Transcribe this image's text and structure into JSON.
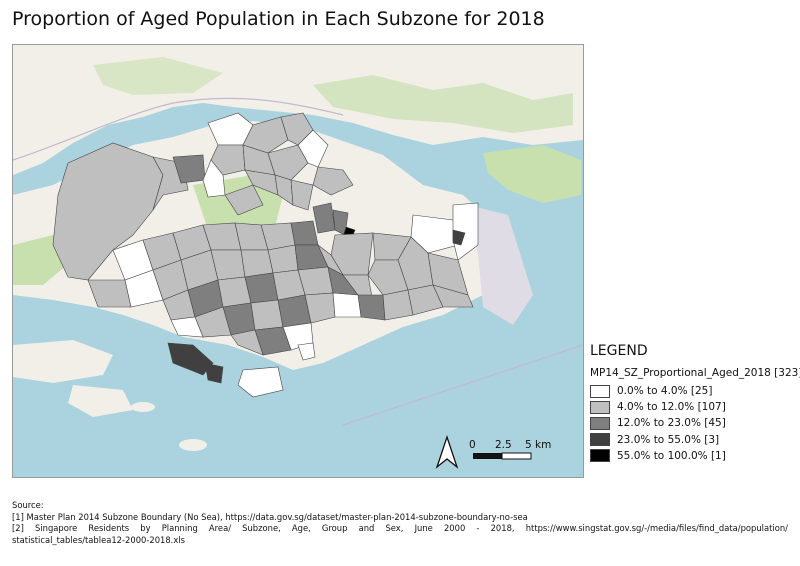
{
  "title": "Proportion of Aged Population in Each Subzone for 2018",
  "legend": {
    "heading": "LEGEND",
    "layer": "MP14_SZ_Proportional_Aged_2018 [323]",
    "classes": [
      {
        "label": "0.0% to 4.0% [25]",
        "color": "#ffffff"
      },
      {
        "label": "4.0% to 12.0% [107]",
        "color": "#bfbfbf"
      },
      {
        "label": "12.0% to 23.0% [45]",
        "color": "#7f7f7f"
      },
      {
        "label": "23.0% to 55.0% [3]",
        "color": "#404040"
      },
      {
        "label": "55.0% to 100.0% [1]",
        "color": "#000000"
      }
    ]
  },
  "scalebar": {
    "t0": "0",
    "t1": "2.5",
    "t2": "5 km"
  },
  "source": {
    "heading": "Source:",
    "line1": "[1] Master Plan 2014 Subzone Boundary (No Sea), https://data.gov.sg/dataset/master-plan-2014-subzone-boundary-no-sea",
    "line2": "[2]  Singapore  Residents  by  Planning  Area/  Subzone,  Age,  Group  and  Sex,  June  2000  -  2018,  https://www.singstat.gov.sg/-/media/files/find_data/population/",
    "line3": "statistical_tables/tablea12-2000-2018.xls"
  },
  "colors": {
    "sea": "#aad3df",
    "land": "#f2efe9",
    "green": "#c8dfae",
    "boundary": "#444444"
  }
}
